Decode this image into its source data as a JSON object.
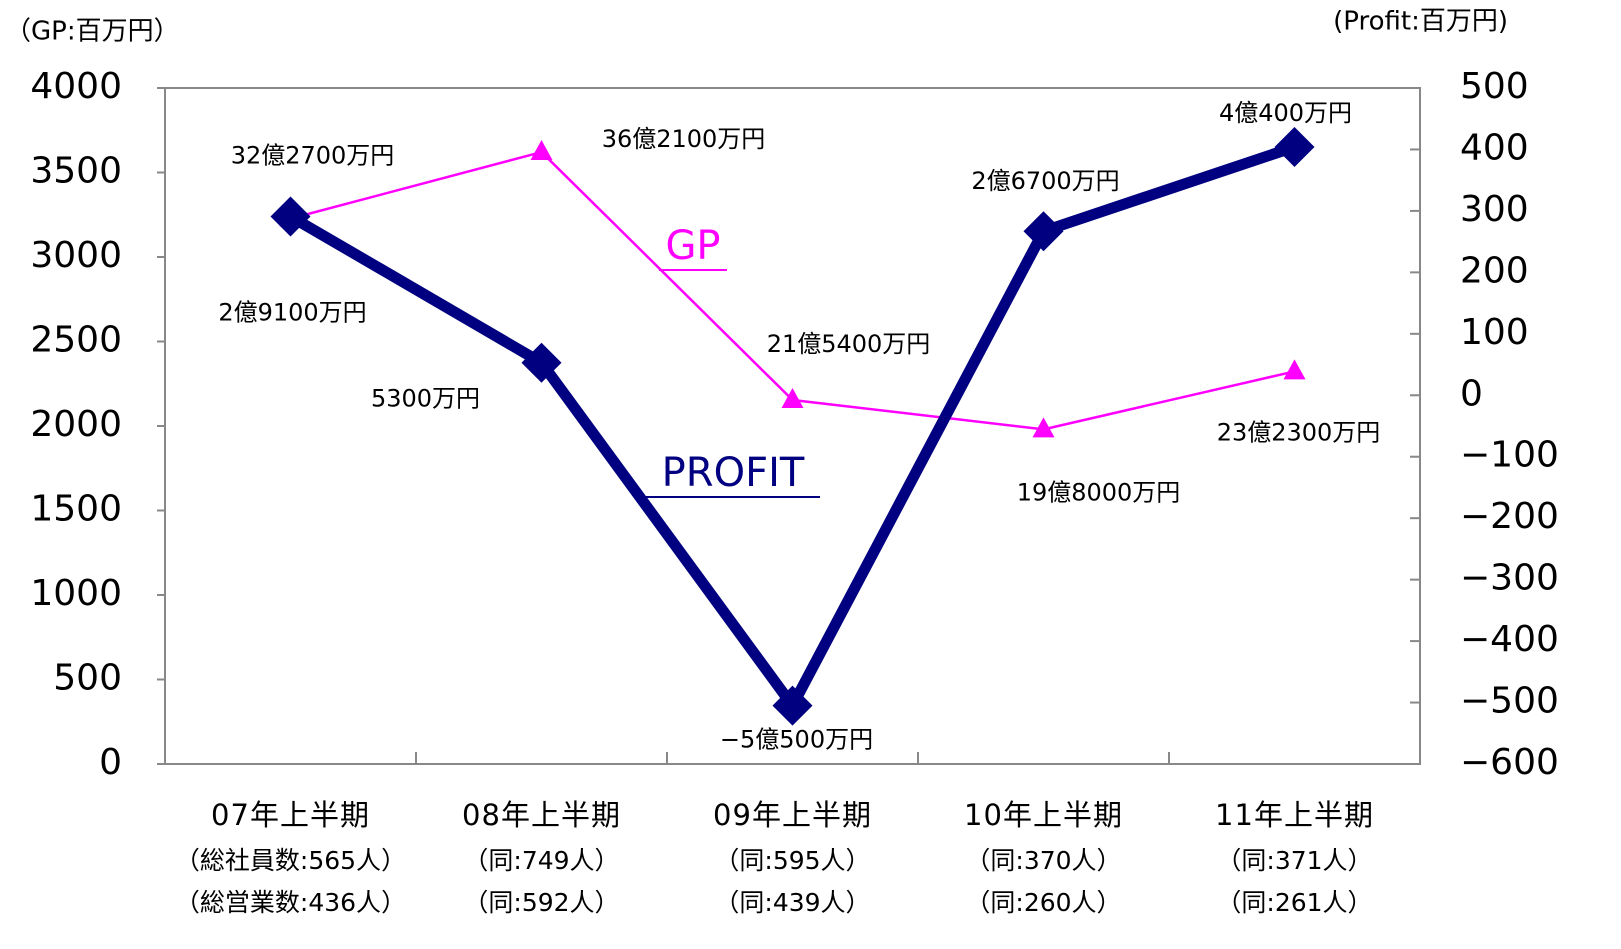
{
  "chart_data": {
    "type": "line",
    "y_axis_label": "（GP:百万円）",
    "y2_axis_label": "(Profit:百万円)",
    "categories": [
      "07年上半期",
      "08年上半期",
      "09年上半期",
      "10年上半期",
      "11年上半期"
    ],
    "category_notes": [
      [
        "（総社員数:565人）",
        "（総営業数:436人）"
      ],
      [
        "（同:749人）",
        "（同:592人）"
      ],
      [
        "（同:595人）",
        "（同:439人）"
      ],
      [
        "（同:370人）",
        "（同:260人）"
      ],
      [
        "（同:371人）",
        "（同:261人）"
      ]
    ],
    "series": [
      {
        "name": "GP",
        "color": "#ff00ff",
        "marker": "triangle",
        "values": [
          3227,
          3621,
          2154,
          1980,
          2323
        ],
        "value_labels": [
          "32億2700万円",
          "36億2100万円",
          "21億5400万円",
          "19億8000万円",
          "23億2300万円"
        ]
      },
      {
        "name": "PROFIT",
        "color": "#000080",
        "marker": "diamond",
        "axis": "y2",
        "values": [
          291,
          53,
          -505,
          267,
          404
        ],
        "value_labels": [
          "2億9100万円",
          "5300万円",
          "−5億500万円",
          "2億6700万円",
          "4億400万円"
        ]
      }
    ],
    "ylim": [
      0,
      4000
    ],
    "yticks": [
      0,
      500,
      1000,
      1500,
      2000,
      2500,
      3000,
      3500,
      4000
    ],
    "y2lim": [
      -600,
      500
    ],
    "y2ticks": [
      {
        "value": -600,
        "label": "−600"
      },
      {
        "value": -500,
        "label": "−500"
      },
      {
        "value": -400,
        "label": "−400"
      },
      {
        "value": -300,
        "label": "−300"
      },
      {
        "value": -200,
        "label": "−200"
      },
      {
        "value": -100,
        "label": "−100"
      },
      0,
      100,
      200,
      300,
      400,
      500
    ],
    "grid": false
  }
}
